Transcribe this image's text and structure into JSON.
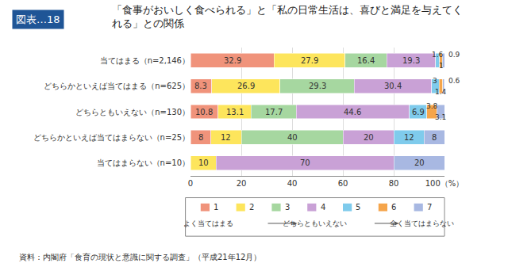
{
  "chart_data": {
    "type": "bar",
    "orientation": "horizontal",
    "stacked": true,
    "data_labels": true,
    "grid": true,
    "title": "「食事がおいしく食べられる」と「私の日常生活は、喜びと満足を与えてくれる」との関係",
    "categories": [
      "当てはまる（n=2,146）",
      "どちらかといえば当てはまる（n=625）",
      "どちらともいえない（n=130）",
      "どちらかといえば当てはまらない（n=25）",
      "当てはまらない（n=10）"
    ],
    "series": [
      {
        "name": "1",
        "color": "#f0937b",
        "values": [
          32.9,
          8.3,
          10.8,
          8.0,
          null
        ]
      },
      {
        "name": "2",
        "color": "#fde55c",
        "values": [
          27.9,
          26.9,
          13.1,
          12.0,
          10.0
        ]
      },
      {
        "name": "3",
        "color": "#a6d7a0",
        "values": [
          16.4,
          29.3,
          17.7,
          40.0,
          null
        ]
      },
      {
        "name": "4",
        "color": "#c9a1d6",
        "values": [
          19.3,
          30.4,
          44.6,
          20.0,
          70.0
        ]
      },
      {
        "name": "5",
        "color": "#7fcbec",
        "values": [
          1.6,
          3.0,
          6.9,
          12.0,
          null
        ]
      },
      {
        "name": "6",
        "color": "#f5a54b",
        "values": [
          1.0,
          1.4,
          3.8,
          null,
          null
        ]
      },
      {
        "name": "7",
        "color": "#a8b8e2",
        "values": [
          0.9,
          0.6,
          3.1,
          8.0,
          20.0
        ]
      }
    ],
    "xlim": [
      0,
      100
    ],
    "xticks": [
      0,
      20,
      40,
      60,
      80,
      {
        "value": 100,
        "label": "100（%）"
      }
    ],
    "annotations": [
      "図表…18",
      "資料：内閣府「食育の現状と意識に関する調査」（平成21年12月）",
      "よく当てはまる",
      "どちらともいえない",
      "全く当てはまらない"
    ]
  }
}
